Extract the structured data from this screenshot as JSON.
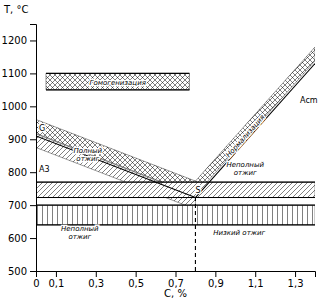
{
  "chart_data": {
    "type": "region",
    "xlabel": "С, %",
    "ylabel": "T, °C",
    "xlim": [
      0,
      1.4
    ],
    "ylim": [
      500,
      1250
    ],
    "xticks": [
      0,
      {
        "value": 0.1,
        "label": "0,1"
      },
      {
        "value": 0.3,
        "label": "0,3"
      },
      {
        "value": 0.5,
        "label": "0,5"
      },
      {
        "value": 0.7,
        "label": "0,7"
      },
      {
        "value": 0.9,
        "label": "0,9"
      },
      {
        "value": 1.1,
        "label": "1,1"
      },
      {
        "value": 1.3,
        "label": "1,3"
      }
    ],
    "yticks": [
      500,
      600,
      700,
      800,
      900,
      1000,
      1100,
      1200
    ],
    "series": [
      {
        "type": "area",
        "color": "#000000",
        "x": [
          0.05,
          0.77
        ],
        "lower": [
          1050,
          1050
        ],
        "upper": [
          1100,
          1100
        ]
      },
      {
        "type": "area",
        "color": "#000000",
        "x": [
          0,
          0.8
        ],
        "lower": [
          918,
          731
        ],
        "upper": [
          960,
          773
        ]
      },
      {
        "type": "area",
        "color": "#000000",
        "x": [
          0.8,
          1.4
        ],
        "lower": [
          731,
          1138
        ],
        "upper": [
          773,
          1180
        ]
      },
      {
        "type": "area",
        "color": "#000000",
        "x": [
          0,
          0.8
        ],
        "lower": [
          875,
          688
        ],
        "upper": [
          916,
          729
        ]
      },
      {
        "type": "area",
        "color": "#000000",
        "x": [
          0,
          1.4
        ],
        "lower": [
          723,
          723
        ],
        "upper": [
          770,
          770
        ]
      },
      {
        "type": "area",
        "color": "#000000",
        "x": [
          0,
          1.4
        ],
        "lower": [
          640,
          640
        ],
        "upper": [
          700,
          700
        ]
      },
      {
        "type": "line",
        "color": "#000000",
        "x": [
          0,
          0.8
        ],
        "values": [
          910,
          723
        ]
      },
      {
        "type": "line",
        "color": "#000000",
        "x": [
          0.8,
          1.4
        ],
        "values": [
          723,
          1130
        ]
      },
      {
        "type": "line",
        "color": "#000000",
        "x": [
          0,
          1.4
        ],
        "values": [
          723,
          723
        ]
      },
      {
        "type": "line",
        "color": "#000000",
        "x": [
          0,
          1.4
        ],
        "values": [
          770,
          770
        ]
      },
      {
        "type": "line",
        "color": "#000000",
        "x": [
          0,
          1.4
        ],
        "values": [
          700,
          700
        ]
      },
      {
        "type": "line",
        "color": "#000000",
        "x": [
          0,
          1.4
        ],
        "values": [
          640,
          640
        ]
      },
      {
        "type": "line",
        "color": "#000000",
        "x": [
          0.05,
          0.77
        ],
        "values": [
          1100,
          1100
        ]
      },
      {
        "type": "line",
        "color": "#000000",
        "x": [
          0.05,
          0.77
        ],
        "values": [
          1050,
          1050
        ]
      },
      {
        "type": "line",
        "color": "#000000",
        "line_style": "dashed",
        "x": [
          0.8,
          0.8
        ],
        "values": [
          500,
          723
        ]
      }
    ],
    "annotations": [
      {
        "text": "Гомогенизация",
        "x": 0.41,
        "y": 1073
      },
      {
        "text": "Полный\nотжиг",
        "x": 0.26,
        "y": 855
      },
      {
        "text": "Нормализация",
        "x": 1.05,
        "y": 910
      },
      {
        "text": "Неполный\nотжиг",
        "x": 1.05,
        "y": 810
      },
      {
        "text": "Неполный\nотжиг",
        "x": 0.22,
        "y": 618
      },
      {
        "text": "Низкий отжиг",
        "x": 1.02,
        "y": 618
      }
    ],
    "point_labels": [
      {
        "text": "G",
        "x": 0.01,
        "y": 918
      },
      {
        "text": "A3",
        "x": 0.01,
        "y": 796
      },
      {
        "text": "S",
        "x": 0.795,
        "y": 730
      },
      {
        "text": "Acm",
        "x": 1.32,
        "y": 1005
      }
    ]
  }
}
